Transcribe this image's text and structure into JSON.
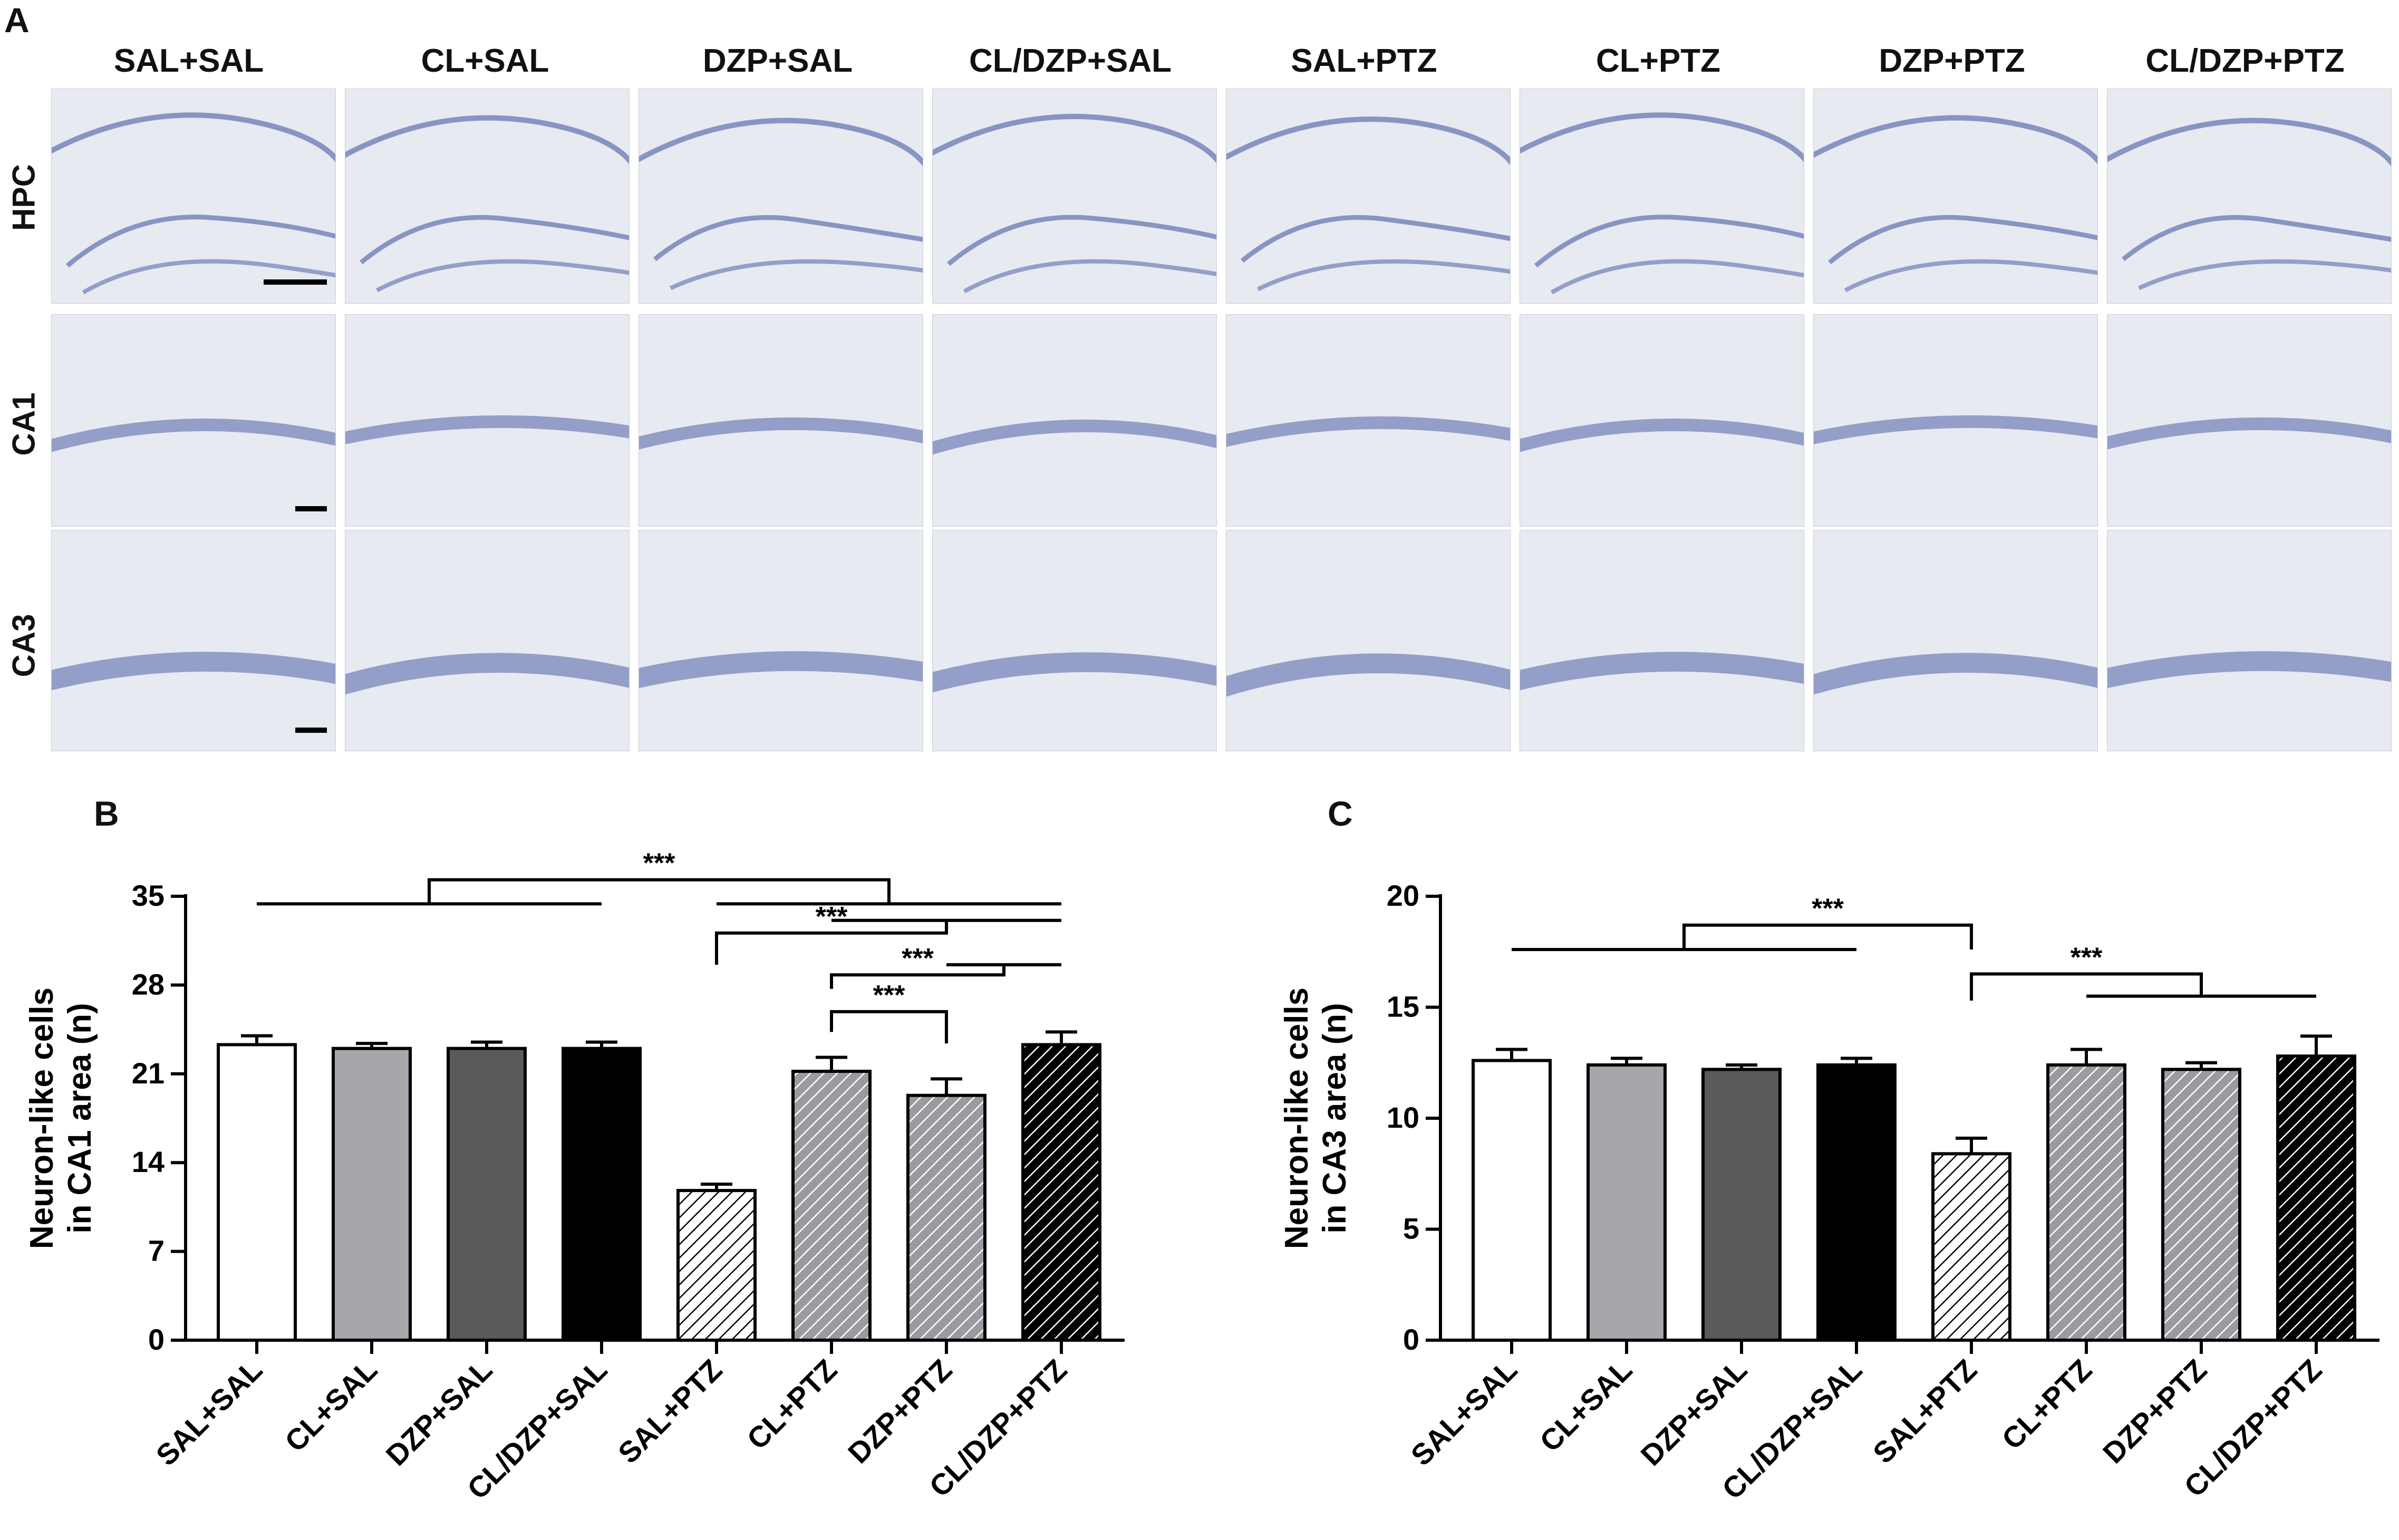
{
  "panel_letters": [
    "A",
    "B",
    "C"
  ],
  "micrographs": {
    "columns": [
      "SAL+SAL",
      "CL+SAL",
      "DZP+SAL",
      "CL/DZP+SAL",
      "SAL+PTZ",
      "CL+PTZ",
      "DZP+PTZ",
      "CL/DZP+PTZ"
    ],
    "rows": [
      "HPC",
      "CA1",
      "CA3"
    ]
  },
  "colors": {
    "tissue_bg": "#e8eaf1",
    "cell_layer": "#6f7fb8",
    "white": "#ffffff",
    "light_gray": "#a6a6ab",
    "dark_gray": "#5a5a5a",
    "black": "#000000"
  },
  "chart_data": [
    {
      "type": "bar",
      "panel": "B",
      "ylabel_lines": [
        "Neuron-like cells",
        "in CA1 area (n)"
      ],
      "ylim": [
        0,
        35
      ],
      "yticks": [
        "0",
        "7",
        "14",
        "21",
        "28",
        "35"
      ],
      "categories": [
        "SAL+SAL",
        "CL+SAL",
        "DZP+SAL",
        "CL/DZP+SAL",
        "SAL+PTZ",
        "CL+PTZ",
        "DZP+PTZ",
        "CL/DZP+PTZ"
      ],
      "values": [
        23.3,
        23.0,
        23.0,
        23.0,
        11.8,
        21.2,
        19.3,
        23.3
      ],
      "errors": [
        0.7,
        0.4,
        0.5,
        0.5,
        0.5,
        1.1,
        1.3,
        1.0
      ],
      "fills": [
        "white",
        "light_gray",
        "dark_gray",
        "black",
        "white-hatch",
        "gray-hatch",
        "gray-hatch",
        "black-hatch"
      ],
      "significance": [
        "***",
        "***",
        "***",
        "***"
      ]
    },
    {
      "type": "bar",
      "panel": "C",
      "ylabel_lines": [
        "Neuron-like cells",
        "in CA3 area (n)"
      ],
      "ylim": [
        0,
        20
      ],
      "yticks": [
        "0",
        "5",
        "10",
        "15",
        "20"
      ],
      "categories": [
        "SAL+SAL",
        "CL+SAL",
        "DZP+SAL",
        "CL/DZP+SAL",
        "SAL+PTZ",
        "CL+PTZ",
        "DZP+PTZ",
        "CL/DZP+PTZ"
      ],
      "values": [
        12.6,
        12.4,
        12.2,
        12.4,
        8.4,
        12.4,
        12.2,
        12.8
      ],
      "errors": [
        0.5,
        0.3,
        0.2,
        0.3,
        0.7,
        0.7,
        0.3,
        0.9
      ],
      "fills": [
        "white",
        "light_gray",
        "dark_gray",
        "black",
        "white-hatch",
        "gray-hatch",
        "gray-hatch",
        "black-hatch"
      ],
      "significance": [
        "***",
        "***"
      ]
    }
  ]
}
